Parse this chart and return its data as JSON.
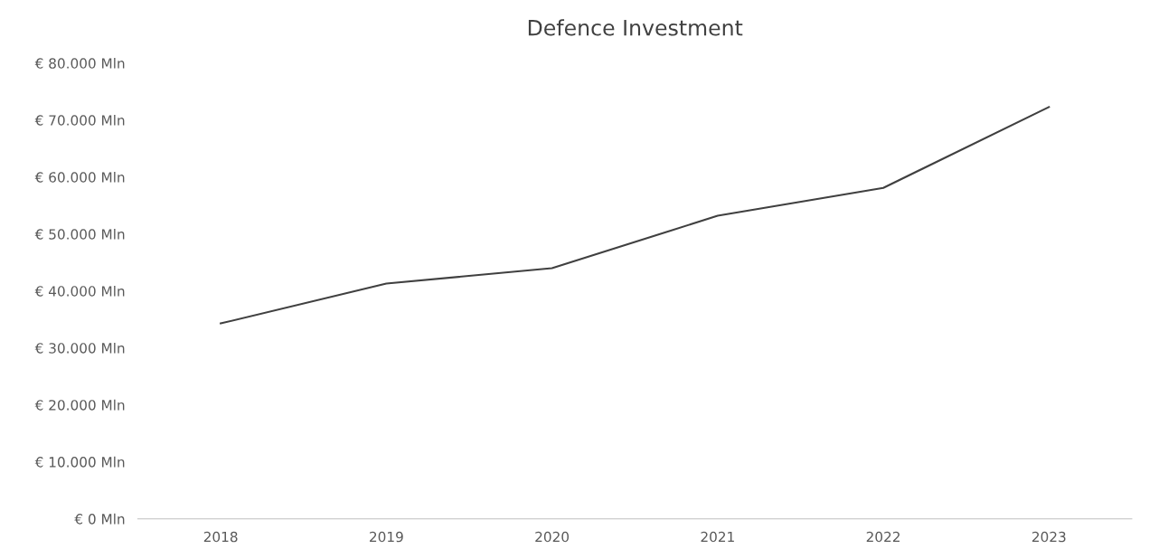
{
  "chart_data": {
    "type": "line",
    "title": "Defence Investment",
    "categories": [
      "2018",
      "2019",
      "2020",
      "2021",
      "2022",
      "2023"
    ],
    "series": [
      {
        "color": "#404040",
        "values": [
          34300,
          41300,
          44000,
          53200,
          58100,
          72300
        ]
      }
    ],
    "ylim": [
      0,
      80000
    ],
    "yticks": [
      {
        "value": 0,
        "label": "€ 0 Mln"
      },
      {
        "value": 10000,
        "label": "€ 10.000 Mln"
      },
      {
        "value": 20000,
        "label": "€ 20.000 Mln"
      },
      {
        "value": 30000,
        "label": "€ 30.000 Mln"
      },
      {
        "value": 40000,
        "label": "€ 40.000 Mln"
      },
      {
        "value": 50000,
        "label": "€ 50.000 Mln"
      },
      {
        "value": 60000,
        "label": "€ 60.000 Mln"
      },
      {
        "value": 70000,
        "label": "€ 70.000 Mln"
      },
      {
        "value": 80000,
        "label": "€ 80.000 Mln"
      }
    ],
    "grid": false,
    "marker": "none",
    "line_style": "solid"
  }
}
